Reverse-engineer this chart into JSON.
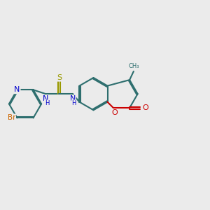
{
  "background_color": "#ebebeb",
  "bond_color": "#2d6e6e",
  "bond_width": 1.5,
  "atom_colors": {
    "Br": "#cc6600",
    "N": "#0000cc",
    "S": "#999900",
    "O": "#cc0000",
    "C": "#2d6e6e",
    "H": "#2d6e6e"
  }
}
